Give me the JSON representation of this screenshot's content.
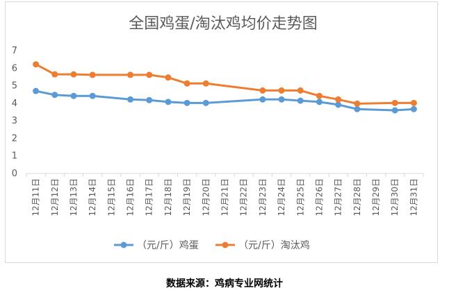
{
  "source": "数据来源：鸡病专业网统计",
  "chart_data": {
    "type": "line",
    "title": "全国鸡蛋/淘汰鸡均价走势图",
    "categories": [
      "12月11日",
      "12月12日",
      "12月13日",
      "12月14日",
      "12月15日",
      "12月16日",
      "12月17日",
      "12月18日",
      "12月19日",
      "12月20日",
      "12月21日",
      "12月22日",
      "12月23日",
      "12月24日",
      "12月25日",
      "12月26日",
      "12月27日",
      "12月28日",
      "12月29日",
      "12月30日",
      "12月31日"
    ],
    "series": [
      {
        "name": "（元/斤）鸡蛋",
        "color": "#5b9bd5",
        "values": [
          4.7,
          4.48,
          4.42,
          4.42,
          null,
          4.22,
          4.18,
          4.08,
          4.02,
          4.02,
          null,
          null,
          4.22,
          4.22,
          4.15,
          4.08,
          3.92,
          3.67,
          null,
          3.6,
          3.67
        ]
      },
      {
        "name": "（元/斤）淘汰鸡",
        "color": "#ed7d31",
        "values": [
          6.22,
          5.65,
          5.65,
          5.62,
          null,
          5.62,
          5.62,
          5.47,
          5.13,
          5.13,
          null,
          null,
          4.73,
          4.73,
          4.73,
          4.42,
          4.22,
          3.98,
          null,
          4.02,
          4.02
        ]
      }
    ],
    "y_ticks": [
      "0",
      "1",
      "2",
      "3",
      "4",
      "5",
      "6",
      "7"
    ],
    "ylim": [
      0,
      7
    ],
    "grid": false,
    "legend_position": "bottom"
  }
}
